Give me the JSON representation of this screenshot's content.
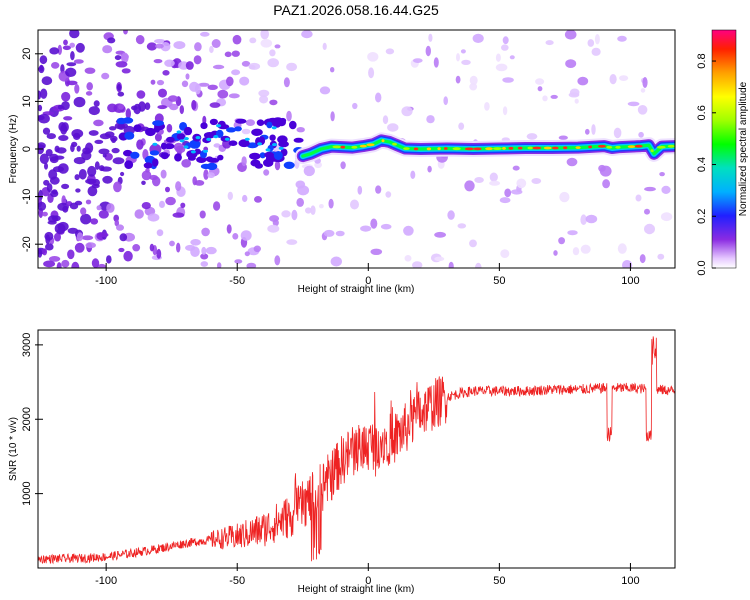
{
  "title": "PAZ1.2026.058.16.44.G25",
  "chart_data": [
    {
      "type": "heatmap",
      "xlabel": "Height of straight line (km)",
      "ylabel": "Frequency (Hz)",
      "xlim": [
        -126,
        117
      ],
      "ylim": [
        -25,
        25
      ],
      "xticks": [
        -100,
        -50,
        0,
        50,
        100
      ],
      "yticks": [
        -20,
        -10,
        0,
        10,
        20
      ],
      "colorbar": {
        "label": "Normalized spectral amplitude",
        "range": [
          0,
          0.92
        ],
        "ticks": [
          "0.0",
          "0.2",
          "0.4",
          "0.6",
          "0.8"
        ]
      },
      "signal_ridge": {
        "x": [
          -25,
          -22,
          -18,
          -14,
          -10,
          -6,
          -2,
          2,
          5,
          8,
          11,
          14,
          20,
          30,
          40,
          50,
          60,
          70,
          80,
          90,
          93,
          96,
          100,
          104,
          107,
          109,
          112,
          117
        ],
        "freq": [
          -1.5,
          -1.0,
          0.0,
          0.5,
          0.4,
          0.3,
          0.6,
          1.0,
          1.8,
          1.5,
          0.8,
          0.1,
          0.0,
          0.1,
          0.0,
          0.1,
          0.2,
          0.2,
          0.3,
          0.6,
          0.2,
          0.4,
          0.5,
          0.6,
          0.8,
          -1.0,
          0.5,
          0.6
        ]
      }
    },
    {
      "type": "line",
      "xlabel": "Height of straight line (km)",
      "ylabel": "SNR (10 * v/v)",
      "xlim": [
        -126,
        117
      ],
      "ylim": [
        0,
        3200
      ],
      "xticks": [
        -100,
        -50,
        0,
        50,
        100
      ],
      "yticks": [
        1000,
        2000,
        3000
      ],
      "color": "#ee2222",
      "trend": {
        "x": [
          -126,
          -110,
          -100,
          -90,
          -80,
          -70,
          -60,
          -50,
          -40,
          -30,
          -25,
          -20,
          -15,
          -10,
          -5,
          0,
          5,
          10,
          15,
          20,
          25,
          30,
          35,
          40,
          50,
          60,
          70,
          80,
          90,
          100,
          110,
          117
        ],
        "snr": [
          120,
          130,
          150,
          200,
          260,
          330,
          380,
          420,
          520,
          700,
          850,
          1000,
          1200,
          1450,
          1600,
          1650,
          1700,
          1750,
          1900,
          2100,
          2200,
          2300,
          2350,
          2380,
          2380,
          2380,
          2400,
          2400,
          2420,
          2420,
          2400,
          2380
        ]
      }
    }
  ]
}
